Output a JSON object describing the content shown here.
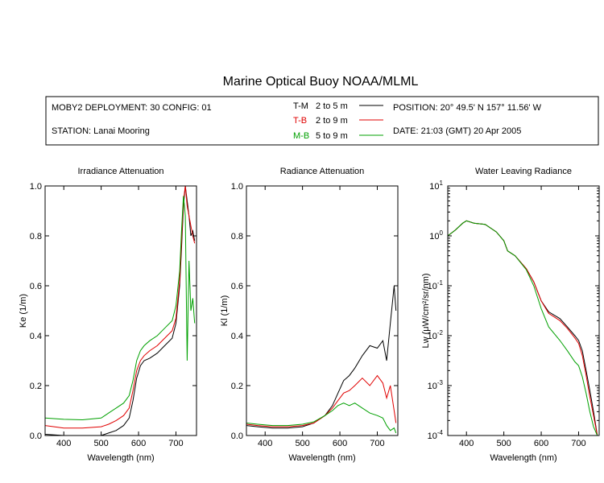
{
  "title": "Marine Optical Buoy NOAA/MLML",
  "info": {
    "deployment": "MOBY2 DEPLOYMENT: 30 CONFIG: 01",
    "station": "STATION: Lanai Mooring",
    "position": "POSITION: 20° 49.5' N   157° 11.56' W",
    "date": "DATE: 21:03 (GMT) 20 Apr 2005",
    "legend": [
      {
        "code": "T-M",
        "range": "2 to 5  m",
        "color": "#000000"
      },
      {
        "code": "T-B",
        "range": "2 to 9  m",
        "color": "#e00000"
      },
      {
        "code": "M-B",
        "range": "5 to 9  m",
        "color": "#00a000"
      }
    ]
  },
  "chart_data": [
    {
      "type": "line",
      "title": "Irradiance Attenuation",
      "xlabel": "Wavelength (nm)",
      "ylabel": "Ke  (1/m)",
      "xlim": [
        350,
        755
      ],
      "ylim": [
        0,
        1.0
      ],
      "xticks": [
        400,
        500,
        600,
        700
      ],
      "yticks": [
        0.0,
        0.2,
        0.4,
        0.6,
        0.8,
        1.0
      ],
      "ytick_labels": [
        "0.0",
        "0.2",
        "0.4",
        "0.6",
        "0.8",
        "1.0"
      ],
      "series": [
        {
          "name": "T-M",
          "color": "#000000",
          "x": [
            350,
            400,
            450,
            500,
            520,
            540,
            560,
            575,
            585,
            595,
            605,
            615,
            630,
            650,
            670,
            690,
            700,
            710,
            715,
            720,
            725,
            730,
            735,
            740,
            745,
            750
          ],
          "y": [
            0.005,
            0.0,
            0.0,
            0.0,
            0.01,
            0.02,
            0.04,
            0.07,
            0.14,
            0.23,
            0.28,
            0.3,
            0.31,
            0.33,
            0.36,
            0.39,
            0.45,
            0.6,
            0.75,
            0.92,
            1.0,
            0.94,
            0.88,
            0.8,
            0.82,
            0.78
          ]
        },
        {
          "name": "T-B",
          "color": "#e00000",
          "x": [
            350,
            400,
            450,
            500,
            520,
            540,
            560,
            575,
            585,
            595,
            605,
            615,
            630,
            650,
            670,
            690,
            700,
            710,
            715,
            720,
            725,
            730,
            735,
            740,
            745,
            750
          ],
          "y": [
            0.04,
            0.03,
            0.03,
            0.035,
            0.045,
            0.06,
            0.08,
            0.11,
            0.18,
            0.26,
            0.3,
            0.32,
            0.34,
            0.36,
            0.39,
            0.42,
            0.47,
            0.62,
            0.78,
            0.94,
            1.0,
            0.92,
            0.88,
            0.84,
            0.8,
            0.77
          ]
        },
        {
          "name": "M-B",
          "color": "#00a000",
          "x": [
            350,
            400,
            450,
            500,
            520,
            540,
            560,
            575,
            585,
            595,
            605,
            615,
            630,
            650,
            670,
            690,
            700,
            710,
            715,
            720,
            725,
            730,
            735,
            740,
            745,
            750
          ],
          "y": [
            0.07,
            0.065,
            0.063,
            0.07,
            0.09,
            0.11,
            0.13,
            0.16,
            0.22,
            0.3,
            0.34,
            0.36,
            0.38,
            0.4,
            0.43,
            0.46,
            0.52,
            0.66,
            0.82,
            0.96,
            0.88,
            0.3,
            0.7,
            0.5,
            0.55,
            0.45
          ]
        }
      ]
    },
    {
      "type": "line",
      "title": "Radiance Attenuation",
      "xlabel": "Wavelength (nm)",
      "ylabel": "Kl  (1/m)",
      "xlim": [
        350,
        755
      ],
      "ylim": [
        0,
        1.0
      ],
      "xticks": [
        400,
        500,
        600,
        700
      ],
      "yticks": [
        0.0,
        0.2,
        0.4,
        0.6,
        0.8,
        1.0
      ],
      "ytick_labels": [
        "0.0",
        "0.2",
        "0.4",
        "0.6",
        "0.8",
        "1.0"
      ],
      "series": [
        {
          "name": "T-M",
          "color": "#000000",
          "x": [
            350,
            380,
            420,
            460,
            500,
            530,
            560,
            580,
            595,
            610,
            625,
            640,
            660,
            680,
            700,
            715,
            725,
            735,
            745,
            750
          ],
          "y": [
            0.04,
            0.035,
            0.03,
            0.03,
            0.035,
            0.05,
            0.08,
            0.12,
            0.17,
            0.22,
            0.24,
            0.27,
            0.32,
            0.36,
            0.35,
            0.38,
            0.3,
            0.45,
            0.6,
            0.5
          ]
        },
        {
          "name": "T-B",
          "color": "#e00000",
          "x": [
            350,
            380,
            420,
            460,
            500,
            530,
            560,
            580,
            595,
            610,
            625,
            640,
            660,
            680,
            700,
            715,
            725,
            735,
            745,
            750
          ],
          "y": [
            0.045,
            0.04,
            0.035,
            0.035,
            0.04,
            0.05,
            0.08,
            0.11,
            0.14,
            0.17,
            0.18,
            0.2,
            0.23,
            0.2,
            0.24,
            0.21,
            0.15,
            0.2,
            0.1,
            0.05
          ]
        },
        {
          "name": "M-B",
          "color": "#00a000",
          "x": [
            350,
            380,
            420,
            460,
            500,
            530,
            560,
            580,
            595,
            610,
            625,
            640,
            660,
            680,
            700,
            715,
            725,
            735,
            745,
            750
          ],
          "y": [
            0.05,
            0.045,
            0.04,
            0.04,
            0.045,
            0.055,
            0.08,
            0.1,
            0.12,
            0.13,
            0.12,
            0.13,
            0.11,
            0.09,
            0.08,
            0.07,
            0.04,
            0.02,
            0.03,
            0.01
          ]
        }
      ]
    },
    {
      "type": "line",
      "title": "Water Leaving Radiance",
      "xlabel": "Wavelength (nm)",
      "ylabel": "Lw  (μW/cm²/sr/nm)",
      "yscale": "log",
      "xlim": [
        350,
        755
      ],
      "ylim": [
        0.0001,
        10
      ],
      "xticks": [
        400,
        500,
        600,
        700
      ],
      "yticks": [
        0.0001,
        0.001,
        0.01,
        0.1,
        1,
        10
      ],
      "ytick_labels": [
        {
          "base": "10",
          "exp": "-4"
        },
        {
          "base": "10",
          "exp": "-3"
        },
        {
          "base": "10",
          "exp": "-2"
        },
        {
          "base": "10",
          "exp": "-1"
        },
        {
          "base": "10",
          "exp": "0"
        },
        {
          "base": "10",
          "exp": "1"
        }
      ],
      "series": [
        {
          "name": "T-M",
          "color": "#000000",
          "x": [
            350,
            370,
            390,
            400,
            420,
            450,
            480,
            500,
            510,
            530,
            560,
            580,
            600,
            620,
            650,
            670,
            690,
            700,
            710,
            720,
            730,
            740,
            750
          ],
          "y": [
            1.0,
            1.3,
            1.8,
            2.0,
            1.8,
            1.7,
            1.2,
            0.8,
            0.5,
            0.4,
            0.22,
            0.12,
            0.05,
            0.03,
            0.022,
            0.015,
            0.01,
            0.008,
            0.005,
            0.002,
            0.0008,
            0.0003,
            0.0001
          ]
        },
        {
          "name": "T-B",
          "color": "#e00000",
          "x": [
            350,
            370,
            390,
            400,
            420,
            450,
            480,
            500,
            510,
            530,
            560,
            580,
            600,
            620,
            650,
            670,
            690,
            700,
            710,
            720,
            730,
            740,
            750
          ],
          "y": [
            1.0,
            1.3,
            1.8,
            2.0,
            1.8,
            1.7,
            1.2,
            0.8,
            0.5,
            0.4,
            0.22,
            0.12,
            0.05,
            0.028,
            0.02,
            0.014,
            0.009,
            0.007,
            0.004,
            0.0016,
            0.0006,
            0.00025,
            0.0001
          ]
        },
        {
          "name": "M-B",
          "color": "#00a000",
          "x": [
            350,
            370,
            390,
            400,
            420,
            450,
            480,
            500,
            510,
            530,
            560,
            580,
            600,
            620,
            650,
            670,
            690,
            700,
            710,
            720,
            730,
            740,
            750
          ],
          "y": [
            1.0,
            1.3,
            1.8,
            2.0,
            1.8,
            1.7,
            1.2,
            0.8,
            0.5,
            0.4,
            0.21,
            0.1,
            0.035,
            0.015,
            0.008,
            0.005,
            0.003,
            0.0025,
            0.0015,
            0.0007,
            0.0003,
            0.00015,
            0.0001
          ]
        }
      ]
    }
  ]
}
